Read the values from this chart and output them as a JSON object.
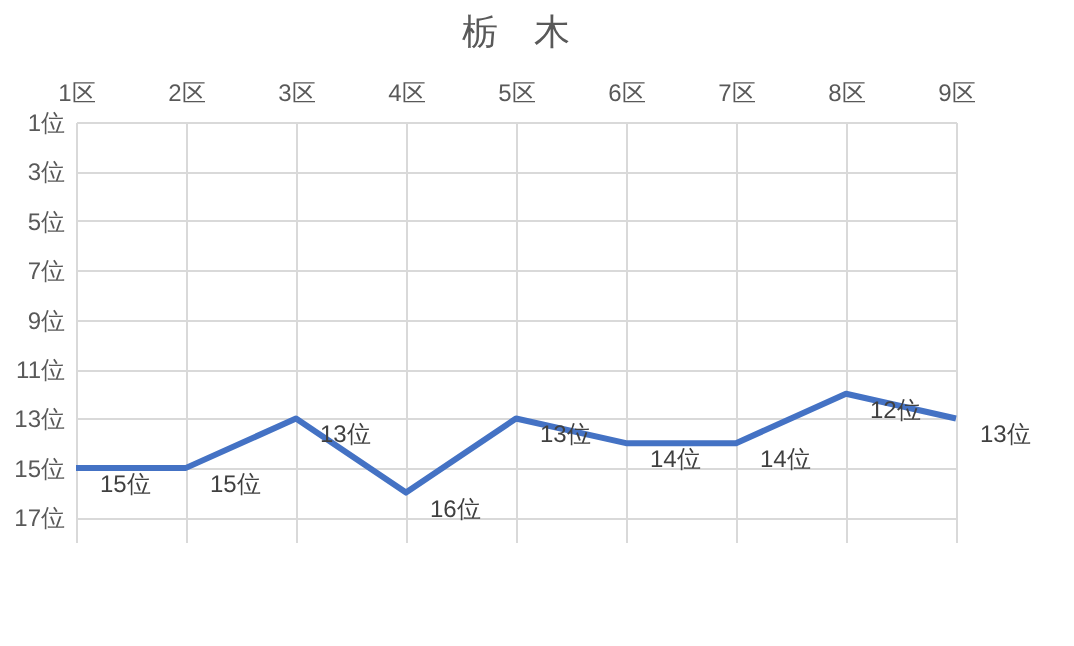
{
  "chart_data": {
    "type": "line",
    "title": "栃　木",
    "categories": [
      "1区",
      "2区",
      "3区",
      "4区",
      "5区",
      "6区",
      "7区",
      "8区",
      "9区"
    ],
    "series": [
      {
        "color": "#4472c4",
        "values": [
          15,
          15,
          13,
          16,
          13,
          14,
          14,
          12,
          13
        ],
        "value_labels": [
          "15位",
          "15位",
          "13位",
          "16位",
          "13位",
          "14位",
          "14位",
          "12位",
          "13位"
        ]
      }
    ],
    "ylim": [
      18,
      1
    ],
    "yticks": [
      {
        "value": 1,
        "label": "1位"
      },
      {
        "value": 3,
        "label": "3位"
      },
      {
        "value": 5,
        "label": "5位"
      },
      {
        "value": 7,
        "label": "7位"
      },
      {
        "value": 9,
        "label": "9位"
      },
      {
        "value": 11,
        "label": "11位"
      },
      {
        "value": 13,
        "label": "13位"
      },
      {
        "value": 15,
        "label": "15位"
      },
      {
        "value": 17,
        "label": "17位"
      }
    ],
    "grid": true
  }
}
